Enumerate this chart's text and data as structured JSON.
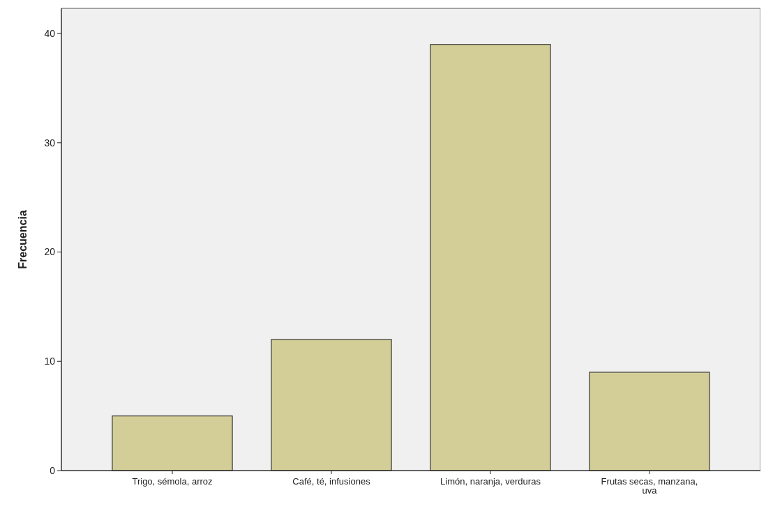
{
  "chart_data": {
    "type": "bar",
    "ylabel": "Frecuencia",
    "categories": [
      "Trigo, sémola, arroz",
      "Café, té, infusiones",
      "Limón, naranja, verduras",
      "Frutas secas, manzana, uva"
    ],
    "values": [
      5,
      12,
      39,
      9
    ],
    "color": "#d3ce97",
    "ylim": [
      0,
      42.3
    ],
    "yticks": [
      0,
      10,
      20,
      30,
      40
    ],
    "grid": false
  }
}
